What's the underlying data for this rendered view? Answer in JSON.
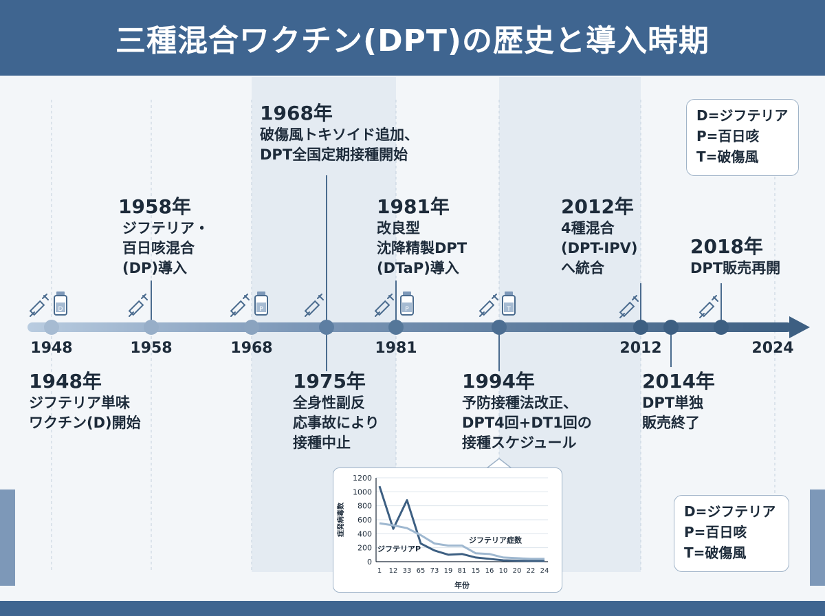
{
  "title": "三種混合ワクチン(DPT)の歴史と導入時期",
  "axis_years": [
    "1948",
    "1958",
    "1968",
    "1981",
    "2012",
    "2024"
  ],
  "events": {
    "e1948": {
      "year": "1948年",
      "desc": "ジフテリア単味\nワクチン(D)開始"
    },
    "e1958": {
      "year": "1958年",
      "desc": "ジフテリア・\n百日咳混合\n(DP)導入"
    },
    "e1968": {
      "year": "1968年",
      "desc": "破傷風トキソイド追加、\nDPT全国定期接種開始"
    },
    "e1975": {
      "year": "1975年",
      "desc": "全身性副反\n応事故により\n接種中止"
    },
    "e1981": {
      "year": "1981年",
      "desc": "改良型\n沈降精製DPT\n(DTaP)導入"
    },
    "e1994": {
      "year": "1994年",
      "desc": "予防接種法改正、\nDPT4回+DT1回の\n接種スケジュール"
    },
    "e2012": {
      "year": "2012年",
      "desc": "4種混合\n(DPT-IPV)\nへ統合"
    },
    "e2014": {
      "year": "2014年",
      "desc": "DPT単独\n販売終了"
    },
    "e2018": {
      "year": "2018年",
      "desc": "DPT販売再開"
    }
  },
  "legend": {
    "d": "D=ジフテリア",
    "p": "P=百日咳",
    "t": "T=破傷風"
  },
  "vial_labels": [
    "D",
    "P",
    "P",
    "T"
  ],
  "icons": [
    "syringe-icon",
    "vial-icon"
  ],
  "colors": {
    "header": "#3f6590",
    "axis_dark": "#3d5f82",
    "axis_light": "#b9cce0",
    "line_dark": "#3d5f82",
    "line_light": "#9fb8d0"
  },
  "chart_data": {
    "type": "line",
    "xlabel": "年份",
    "ylabel": "症発病毒数",
    "ylim": [
      0,
      1200
    ],
    "yticks": [
      0,
      200,
      400,
      600,
      800,
      1000,
      1200
    ],
    "categories": [
      "1",
      "12",
      "33",
      "65",
      "73",
      "19",
      "81",
      "15",
      "16",
      "10",
      "20",
      "22",
      "24"
    ],
    "series": [
      {
        "name": "ジフテリアP",
        "values": [
          1080,
          470,
          880,
          260,
          160,
          100,
          110,
          60,
          40,
          20,
          15,
          10,
          10
        ]
      },
      {
        "name": "ジフテリア症数",
        "values": [
          550,
          520,
          480,
          380,
          260,
          230,
          230,
          120,
          110,
          60,
          50,
          40,
          40
        ]
      }
    ]
  }
}
